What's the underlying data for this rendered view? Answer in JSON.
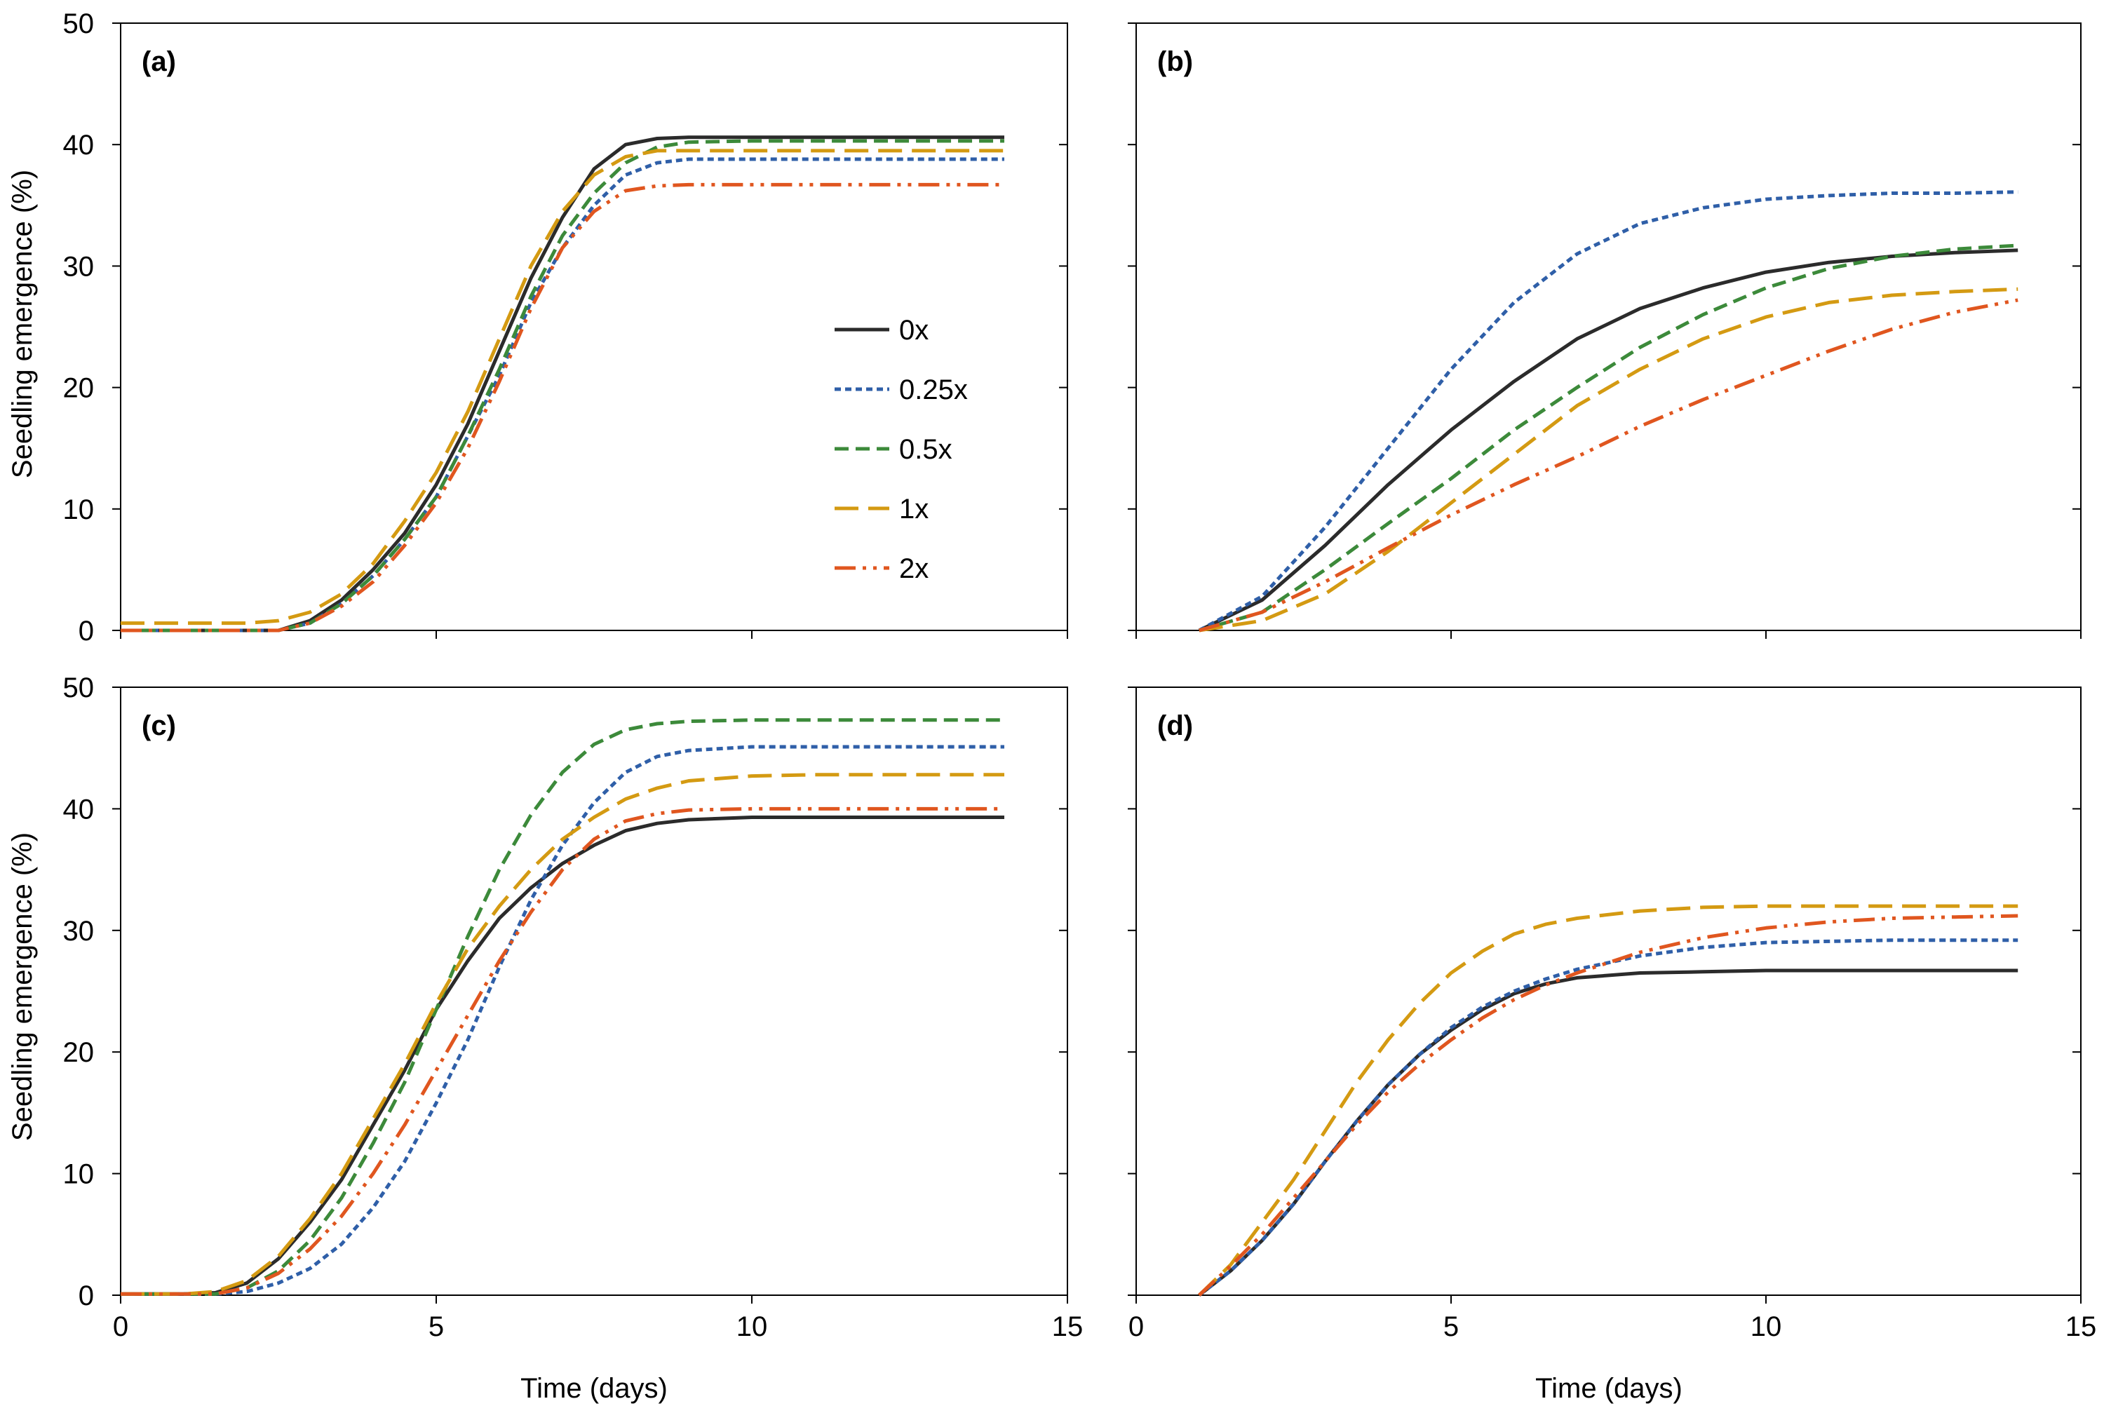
{
  "figure": {
    "x_axis_title": "Time (days)",
    "y_axis_title": "Seedling emergence (%)"
  },
  "legend": [
    {
      "label": "0x",
      "color": "#2b2b2b",
      "dash": "solid"
    },
    {
      "label": "0.25x",
      "color": "#2f5fa8",
      "dash": "short-dash"
    },
    {
      "label": "0.5x",
      "color": "#3c8a3a",
      "dash": "dash"
    },
    {
      "label": "1x",
      "color": "#d49a12",
      "dash": "long-dash"
    },
    {
      "label": "2x",
      "color": "#e0561f",
      "dash": "dash-dot-dot"
    }
  ],
  "chart_data": [
    {
      "type": "line",
      "panel_label": "(a)",
      "xlabel": "",
      "ylabel": "Seedling emergence (%)",
      "xlim": [
        0,
        15
      ],
      "ylim": [
        0,
        50
      ],
      "xticks": [
        0,
        5,
        10,
        15
      ],
      "yticks": [
        0,
        10,
        20,
        30,
        40,
        50
      ],
      "show_x_tick_labels": false,
      "show_y_tick_labels": true,
      "x": [
        0,
        1,
        2,
        2.5,
        3,
        3.5,
        4,
        4.5,
        5,
        5.5,
        6,
        6.5,
        7,
        7.5,
        8,
        8.5,
        9,
        10,
        11,
        12,
        13,
        14
      ],
      "series": [
        {
          "name": "0x",
          "values": [
            0,
            0,
            0,
            0,
            0.8,
            2.5,
            5,
            8,
            12,
            17,
            23,
            29,
            34,
            38,
            40,
            40.5,
            40.6,
            40.6,
            40.6,
            40.6,
            40.6,
            40.6
          ]
        },
        {
          "name": "0.25x",
          "values": [
            0,
            0,
            0,
            0,
            0.6,
            2.2,
            4.5,
            7.5,
            11,
            16,
            21,
            27,
            31.5,
            35,
            37.5,
            38.5,
            38.8,
            38.8,
            38.8,
            38.8,
            38.8,
            38.8
          ]
        },
        {
          "name": "0.5x",
          "values": [
            0,
            0,
            0,
            0,
            0.6,
            2.2,
            4.5,
            7.5,
            11,
            16,
            21.5,
            27.5,
            32.5,
            36,
            38.5,
            39.8,
            40.2,
            40.3,
            40.3,
            40.3,
            40.3,
            40.3
          ]
        },
        {
          "name": "1x",
          "values": [
            0.6,
            0.6,
            0.6,
            0.8,
            1.5,
            3,
            5.5,
            9,
            13,
            18,
            24,
            30,
            34.5,
            37.5,
            39,
            39.5,
            39.5,
            39.5,
            39.5,
            39.5,
            39.5,
            39.5
          ]
        },
        {
          "name": "2x",
          "values": [
            0,
            0,
            0,
            0,
            0.6,
            2,
            4,
            7,
            10.5,
            15,
            20.5,
            26.5,
            31.5,
            34.5,
            36.2,
            36.6,
            36.7,
            36.7,
            36.7,
            36.7,
            36.7,
            36.7
          ]
        }
      ]
    },
    {
      "type": "line",
      "panel_label": "(b)",
      "xlabel": "",
      "ylabel": "",
      "xlim": [
        0,
        15
      ],
      "ylim": [
        0,
        50
      ],
      "xticks": [
        0,
        5,
        10,
        15
      ],
      "yticks": [
        0,
        10,
        20,
        30,
        40,
        50
      ],
      "show_x_tick_labels": false,
      "show_y_tick_labels": false,
      "x": [
        1,
        2,
        3,
        4,
        5,
        6,
        7,
        8,
        9,
        10,
        11,
        12,
        13,
        14
      ],
      "series": [
        {
          "name": "0x",
          "values": [
            0,
            2.5,
            7,
            12,
            16.5,
            20.5,
            24,
            26.5,
            28.2,
            29.5,
            30.3,
            30.8,
            31.1,
            31.3
          ]
        },
        {
          "name": "0.25x",
          "values": [
            0,
            2.8,
            8.5,
            15,
            21.5,
            27,
            31,
            33.5,
            34.8,
            35.5,
            35.8,
            36,
            36,
            36.1
          ]
        },
        {
          "name": "0.5x",
          "values": [
            0,
            1.5,
            5,
            8.8,
            12.5,
            16.5,
            20,
            23.3,
            26,
            28.2,
            29.8,
            30.8,
            31.4,
            31.7
          ]
        },
        {
          "name": "1x",
          "values": [
            0,
            0.8,
            3,
            6.5,
            10.5,
            14.5,
            18.5,
            21.5,
            24,
            25.8,
            27,
            27.6,
            27.9,
            28.1
          ]
        },
        {
          "name": "2x",
          "values": [
            0,
            1.5,
            4,
            6.8,
            9.5,
            12,
            14.3,
            16.8,
            19,
            21,
            23,
            24.8,
            26.2,
            27.2
          ]
        }
      ]
    },
    {
      "type": "line",
      "panel_label": "(c)",
      "xlabel": "Time (days)",
      "ylabel": "Seedling emergence (%)",
      "xlim": [
        0,
        15
      ],
      "ylim": [
        0,
        50
      ],
      "xticks": [
        0,
        5,
        10,
        15
      ],
      "yticks": [
        0,
        10,
        20,
        30,
        40,
        50
      ],
      "show_x_tick_labels": true,
      "show_y_tick_labels": true,
      "x": [
        0,
        1,
        1.5,
        2,
        2.5,
        3,
        3.5,
        4,
        4.5,
        5,
        5.5,
        6,
        6.5,
        7,
        7.5,
        8,
        8.5,
        9,
        10,
        11,
        12,
        13,
        14
      ],
      "series": [
        {
          "name": "0x",
          "values": [
            0.1,
            0.1,
            0.2,
            1,
            3,
            6,
            9.5,
            14,
            18.5,
            23.5,
            27.5,
            31,
            33.5,
            35.5,
            37,
            38.2,
            38.8,
            39.1,
            39.3,
            39.3,
            39.3,
            39.3,
            39.3
          ]
        },
        {
          "name": "0.25x",
          "values": [
            0.1,
            0.1,
            0.1,
            0.3,
            1,
            2.2,
            4.2,
            7.2,
            11,
            15.8,
            21,
            27,
            32.5,
            37,
            40.5,
            43,
            44.3,
            44.8,
            45.1,
            45.1,
            45.1,
            45.1,
            45.1
          ]
        },
        {
          "name": "0.5x",
          "values": [
            0.1,
            0.1,
            0.1,
            0.6,
            2,
            4.5,
            8,
            12.5,
            17.5,
            23.5,
            29.5,
            35,
            39.5,
            43,
            45.3,
            46.5,
            47,
            47.2,
            47.3,
            47.3,
            47.3,
            47.3,
            47.3
          ]
        },
        {
          "name": "1x",
          "values": [
            0.1,
            0.1,
            0.3,
            1.2,
            3.2,
            6.3,
            10,
            14.5,
            19,
            24,
            28.5,
            32,
            35,
            37.5,
            39.3,
            40.8,
            41.7,
            42.3,
            42.7,
            42.8,
            42.8,
            42.8,
            42.8
          ]
        },
        {
          "name": "2x",
          "values": [
            0.1,
            0.1,
            0.1,
            0.6,
            1.8,
            3.8,
            6.5,
            10,
            14,
            18.5,
            23,
            27.5,
            31.5,
            35,
            37.5,
            39,
            39.6,
            39.9,
            40,
            40,
            40,
            40,
            40
          ]
        }
      ]
    },
    {
      "type": "line",
      "panel_label": "(d)",
      "xlabel": "Time (days)",
      "ylabel": "",
      "xlim": [
        0,
        15
      ],
      "ylim": [
        0,
        50
      ],
      "xticks": [
        0,
        5,
        10,
        15
      ],
      "yticks": [
        0,
        10,
        20,
        30,
        40,
        50
      ],
      "show_x_tick_labels": true,
      "show_y_tick_labels": false,
      "x": [
        1,
        1.5,
        2,
        2.5,
        3,
        3.5,
        4,
        4.5,
        5,
        5.5,
        6,
        6.5,
        7,
        8,
        9,
        10,
        11,
        12,
        13,
        14
      ],
      "series": [
        {
          "name": "0x",
          "values": [
            0,
            2,
            4.5,
            7.5,
            11,
            14.3,
            17.3,
            19.8,
            21.8,
            23.5,
            24.8,
            25.6,
            26.1,
            26.5,
            26.6,
            26.7,
            26.7,
            26.7,
            26.7,
            26.7
          ]
        },
        {
          "name": "0.25x",
          "values": [
            0,
            2,
            4.5,
            7.5,
            11,
            14.3,
            17.3,
            19.8,
            22,
            23.7,
            25,
            26,
            26.8,
            27.9,
            28.6,
            29,
            29.1,
            29.2,
            29.2,
            29.2
          ]
        },
        {
          "name": "1x",
          "values": [
            0,
            2.5,
            6,
            9.5,
            13.5,
            17.5,
            21,
            24,
            26.5,
            28.3,
            29.7,
            30.5,
            31,
            31.6,
            31.9,
            32,
            32,
            32,
            32,
            32
          ]
        },
        {
          "name": "2x",
          "values": [
            0,
            2.4,
            5,
            8,
            11,
            14,
            16.7,
            19,
            21,
            22.8,
            24.3,
            25.5,
            26.5,
            28.2,
            29.4,
            30.2,
            30.7,
            31,
            31.1,
            31.2
          ]
        }
      ]
    }
  ]
}
